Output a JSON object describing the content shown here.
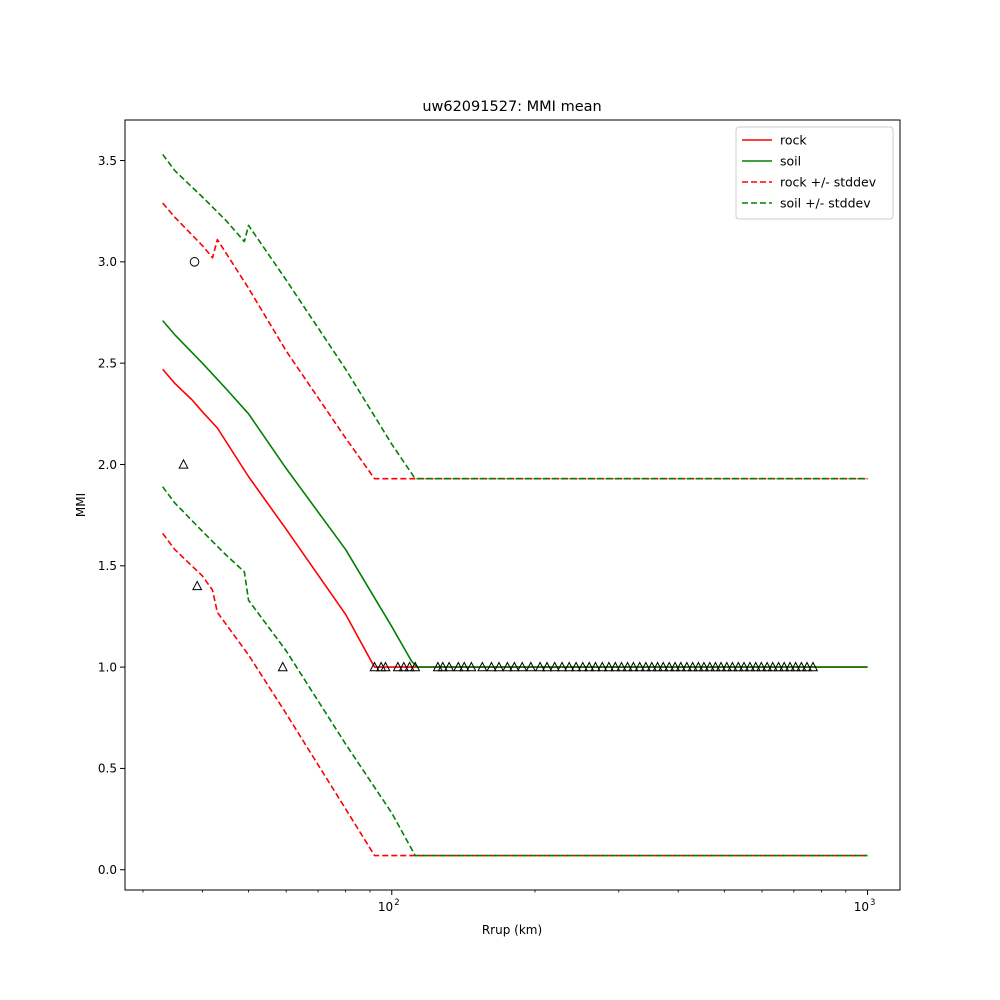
{
  "chart_data": {
    "type": "line",
    "title": "uw62091527: MMI mean",
    "xlabel": "Rrup (km)",
    "ylabel": "MMI",
    "xscale": "log",
    "xlim": [
      27.5,
      1170
    ],
    "ylim": [
      -0.1,
      3.7
    ],
    "x_ticks": [
      {
        "value": 100,
        "label": "10",
        "exp": "2"
      },
      {
        "value": 1000,
        "label": "10",
        "exp": "3"
      }
    ],
    "y_ticks": [
      {
        "value": 0.0,
        "label": "0.0"
      },
      {
        "value": 0.5,
        "label": "0.5"
      },
      {
        "value": 1.0,
        "label": "1.0"
      },
      {
        "value": 1.5,
        "label": "1.5"
      },
      {
        "value": 2.0,
        "label": "2.0"
      },
      {
        "value": 2.5,
        "label": "2.5"
      },
      {
        "value": 3.0,
        "label": "3.0"
      },
      {
        "value": 3.5,
        "label": "3.5"
      }
    ],
    "legend_position": "top-right",
    "series": [
      {
        "name": "rock",
        "color": "#ff0000",
        "style": "solid",
        "x": [
          33,
          35,
          38,
          40,
          43,
          50,
          60,
          80,
          92,
          100,
          1000
        ],
        "y": [
          2.47,
          2.4,
          2.32,
          2.26,
          2.18,
          1.94,
          1.68,
          1.26,
          1.0,
          1.0,
          1.0
        ]
      },
      {
        "name": "soil",
        "color": "#008000",
        "style": "solid",
        "x": [
          33,
          35,
          40,
          45,
          50,
          60,
          80,
          100,
          110,
          113,
          1000
        ],
        "y": [
          2.71,
          2.64,
          2.5,
          2.37,
          2.25,
          1.98,
          1.58,
          1.2,
          1.03,
          1.0,
          1.0
        ]
      },
      {
        "name": "rock +/- stddev",
        "color": "#ff0000",
        "style": "dashed",
        "x": [
          33,
          35,
          40,
          42,
          43,
          50,
          60,
          80,
          92,
          100,
          1000
        ],
        "y": [
          3.29,
          3.22,
          3.08,
          3.02,
          3.11,
          2.87,
          2.56,
          2.13,
          1.93,
          1.93,
          1.93
        ]
      },
      {
        "name": "",
        "color": "#ff0000",
        "style": "dashed",
        "x": [
          33,
          35,
          40,
          42,
          43,
          50,
          60,
          80,
          92,
          100,
          1000
        ],
        "y": [
          1.66,
          1.58,
          1.45,
          1.38,
          1.27,
          1.06,
          0.77,
          0.3,
          0.07,
          0.07,
          0.07
        ]
      },
      {
        "name": "soil +/- stddev",
        "color": "#008000",
        "style": "dashed",
        "x": [
          33,
          35,
          40,
          45,
          49,
          50,
          60,
          80,
          100,
          112,
          1000
        ],
        "y": [
          3.53,
          3.45,
          3.32,
          3.2,
          3.1,
          3.18,
          2.91,
          2.47,
          2.1,
          1.93,
          1.93
        ]
      },
      {
        "name": "",
        "color": "#008000",
        "style": "dashed",
        "x": [
          33,
          35,
          40,
          45,
          49,
          50,
          60,
          80,
          100,
          112,
          1000
        ],
        "y": [
          1.89,
          1.81,
          1.67,
          1.55,
          1.47,
          1.33,
          1.08,
          0.62,
          0.28,
          0.07,
          0.07
        ]
      }
    ],
    "observations": [
      {
        "marker": "circle",
        "points": [
          [
            38.5,
            3.0
          ]
        ]
      },
      {
        "marker": "triangle",
        "points": [
          [
            36.5,
            2.0
          ],
          [
            39,
            1.4
          ],
          [
            59,
            1.0
          ],
          [
            92,
            1.0
          ],
          [
            95,
            1.0
          ],
          [
            97,
            1.0
          ],
          [
            103,
            1.0
          ],
          [
            106,
            1.0
          ],
          [
            109,
            1.0
          ],
          [
            112,
            1.0
          ],
          [
            125,
            1.0
          ],
          [
            128,
            1.0
          ],
          [
            132,
            1.0
          ],
          [
            138,
            1.0
          ],
          [
            142,
            1.0
          ],
          [
            147,
            1.0
          ],
          [
            155,
            1.0
          ],
          [
            162,
            1.0
          ],
          [
            168,
            1.0
          ],
          [
            175,
            1.0
          ],
          [
            181,
            1.0
          ],
          [
            188,
            1.0
          ],
          [
            196,
            1.0
          ],
          [
            205,
            1.0
          ],
          [
            212,
            1.0
          ],
          [
            220,
            1.0
          ],
          [
            228,
            1.0
          ],
          [
            236,
            1.0
          ],
          [
            244,
            1.0
          ],
          [
            252,
            1.0
          ],
          [
            260,
            1.0
          ],
          [
            268,
            1.0
          ],
          [
            277,
            1.0
          ],
          [
            286,
            1.0
          ],
          [
            295,
            1.0
          ],
          [
            304,
            1.0
          ],
          [
            313,
            1.0
          ],
          [
            322,
            1.0
          ],
          [
            332,
            1.0
          ],
          [
            342,
            1.0
          ],
          [
            352,
            1.0
          ],
          [
            362,
            1.0
          ],
          [
            372,
            1.0
          ],
          [
            383,
            1.0
          ],
          [
            394,
            1.0
          ],
          [
            405,
            1.0
          ],
          [
            417,
            1.0
          ],
          [
            429,
            1.0
          ],
          [
            441,
            1.0
          ],
          [
            453,
            1.0
          ],
          [
            466,
            1.0
          ],
          [
            479,
            1.0
          ],
          [
            492,
            1.0
          ],
          [
            506,
            1.0
          ],
          [
            520,
            1.0
          ],
          [
            535,
            1.0
          ],
          [
            550,
            1.0
          ],
          [
            566,
            1.0
          ],
          [
            582,
            1.0
          ],
          [
            598,
            1.0
          ],
          [
            615,
            1.0
          ],
          [
            632,
            1.0
          ],
          [
            650,
            1.0
          ],
          [
            668,
            1.0
          ],
          [
            687,
            1.0
          ],
          [
            706,
            1.0
          ],
          [
            726,
            1.0
          ],
          [
            746,
            1.0
          ],
          [
            768,
            1.0
          ]
        ]
      }
    ]
  }
}
